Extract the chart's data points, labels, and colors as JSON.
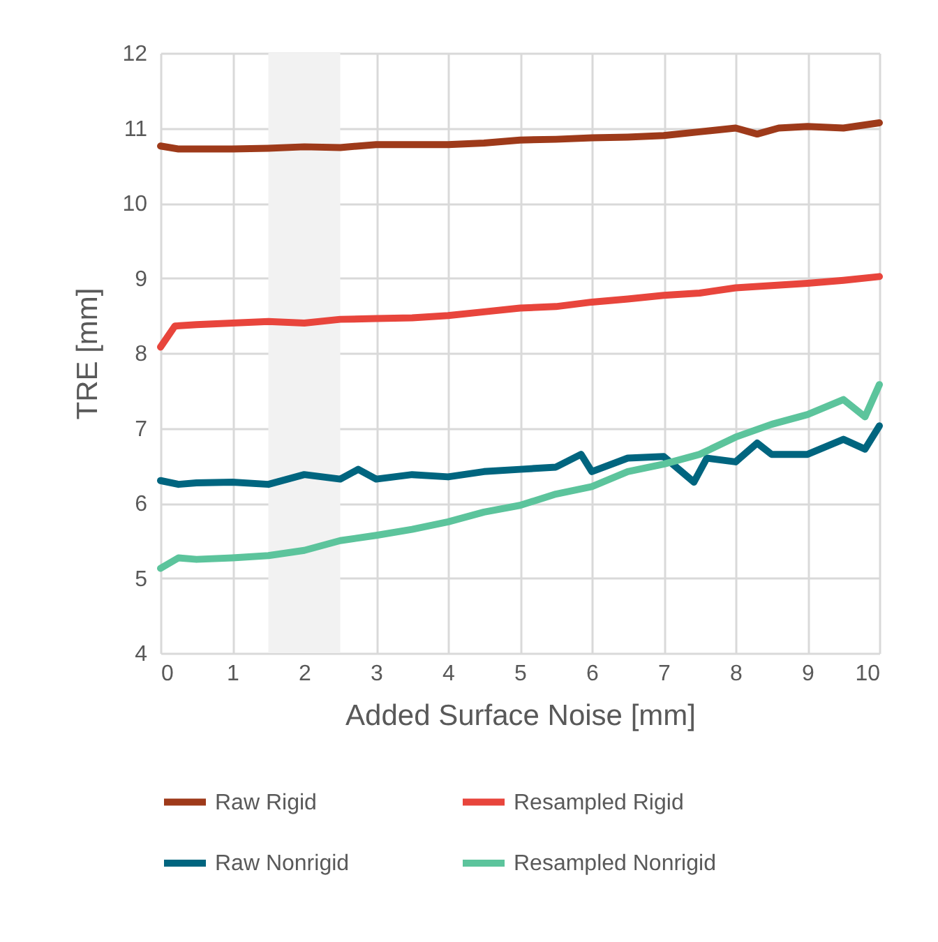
{
  "chart_data": {
    "type": "line",
    "xlabel": "Added Surface Noise [mm]",
    "ylabel": "TRE [mm]",
    "xlim": [
      0,
      10
    ],
    "xticks": [
      0,
      1,
      2,
      3,
      4,
      5,
      6,
      7,
      8,
      9,
      10
    ],
    "ylim": [
      4,
      12
    ],
    "yticks": [
      4,
      5,
      6,
      7,
      8,
      9,
      10,
      11,
      12
    ],
    "grid": true,
    "legend": "bottom",
    "bands": [
      {
        "axis": "x",
        "from": 1.5,
        "to": 2.5,
        "color": "#f2f2f2"
      }
    ],
    "series": [
      {
        "name": "Raw Rigid",
        "color": "#9e3a1a",
        "x": [
          0,
          0.25,
          0.5,
          1,
          1.5,
          2,
          2.5,
          3,
          3.5,
          4,
          4.5,
          5,
          5.5,
          6,
          6.5,
          7,
          7.5,
          8,
          8.3,
          8.6,
          9,
          9.5,
          10
        ],
        "values": [
          10.76,
          10.72,
          10.72,
          10.72,
          10.73,
          10.75,
          10.74,
          10.78,
          10.78,
          10.78,
          10.8,
          10.84,
          10.85,
          10.87,
          10.88,
          10.9,
          10.95,
          11.0,
          10.92,
          11.0,
          11.02,
          11.0,
          11.07
        ]
      },
      {
        "name": "Resampled Rigid",
        "color": "#e8453c",
        "x": [
          0,
          0.2,
          0.5,
          1,
          1.5,
          2,
          2.5,
          3,
          3.5,
          4,
          4.5,
          5,
          5.5,
          6,
          6.5,
          7,
          7.5,
          8,
          8.5,
          9,
          9.5,
          10
        ],
        "values": [
          8.08,
          8.36,
          8.38,
          8.4,
          8.42,
          8.4,
          8.45,
          8.46,
          8.47,
          8.5,
          8.55,
          8.6,
          8.62,
          8.68,
          8.72,
          8.77,
          8.8,
          8.87,
          8.9,
          8.93,
          8.97,
          9.02
        ]
      },
      {
        "name": "Raw Nonrigid",
        "color": "#00657f",
        "x": [
          0,
          0.25,
          0.5,
          1,
          1.5,
          2,
          2.5,
          2.75,
          3,
          3.5,
          4,
          4.5,
          5,
          5.5,
          5.85,
          6,
          6.5,
          7,
          7.42,
          7.6,
          8,
          8.3,
          8.5,
          9,
          9.5,
          9.8,
          10
        ],
        "values": [
          6.3,
          6.25,
          6.27,
          6.28,
          6.25,
          6.38,
          6.32,
          6.45,
          6.32,
          6.38,
          6.35,
          6.42,
          6.45,
          6.48,
          6.65,
          6.42,
          6.6,
          6.62,
          6.28,
          6.6,
          6.55,
          6.8,
          6.65,
          6.65,
          6.85,
          6.72,
          7.03
        ]
      },
      {
        "name": "Resampled Nonrigid",
        "color": "#5cc49c",
        "x": [
          0,
          0.25,
          0.5,
          1,
          1.5,
          2,
          2.5,
          3,
          3.5,
          4,
          4.5,
          5,
          5.5,
          6,
          6.5,
          7,
          7.5,
          8,
          8.5,
          9,
          9.5,
          9.8,
          10
        ],
        "values": [
          5.13,
          5.27,
          5.25,
          5.27,
          5.3,
          5.37,
          5.5,
          5.57,
          5.65,
          5.75,
          5.88,
          5.97,
          6.12,
          6.22,
          6.42,
          6.52,
          6.65,
          6.88,
          7.05,
          7.18,
          7.38,
          7.15,
          7.58
        ]
      }
    ]
  }
}
